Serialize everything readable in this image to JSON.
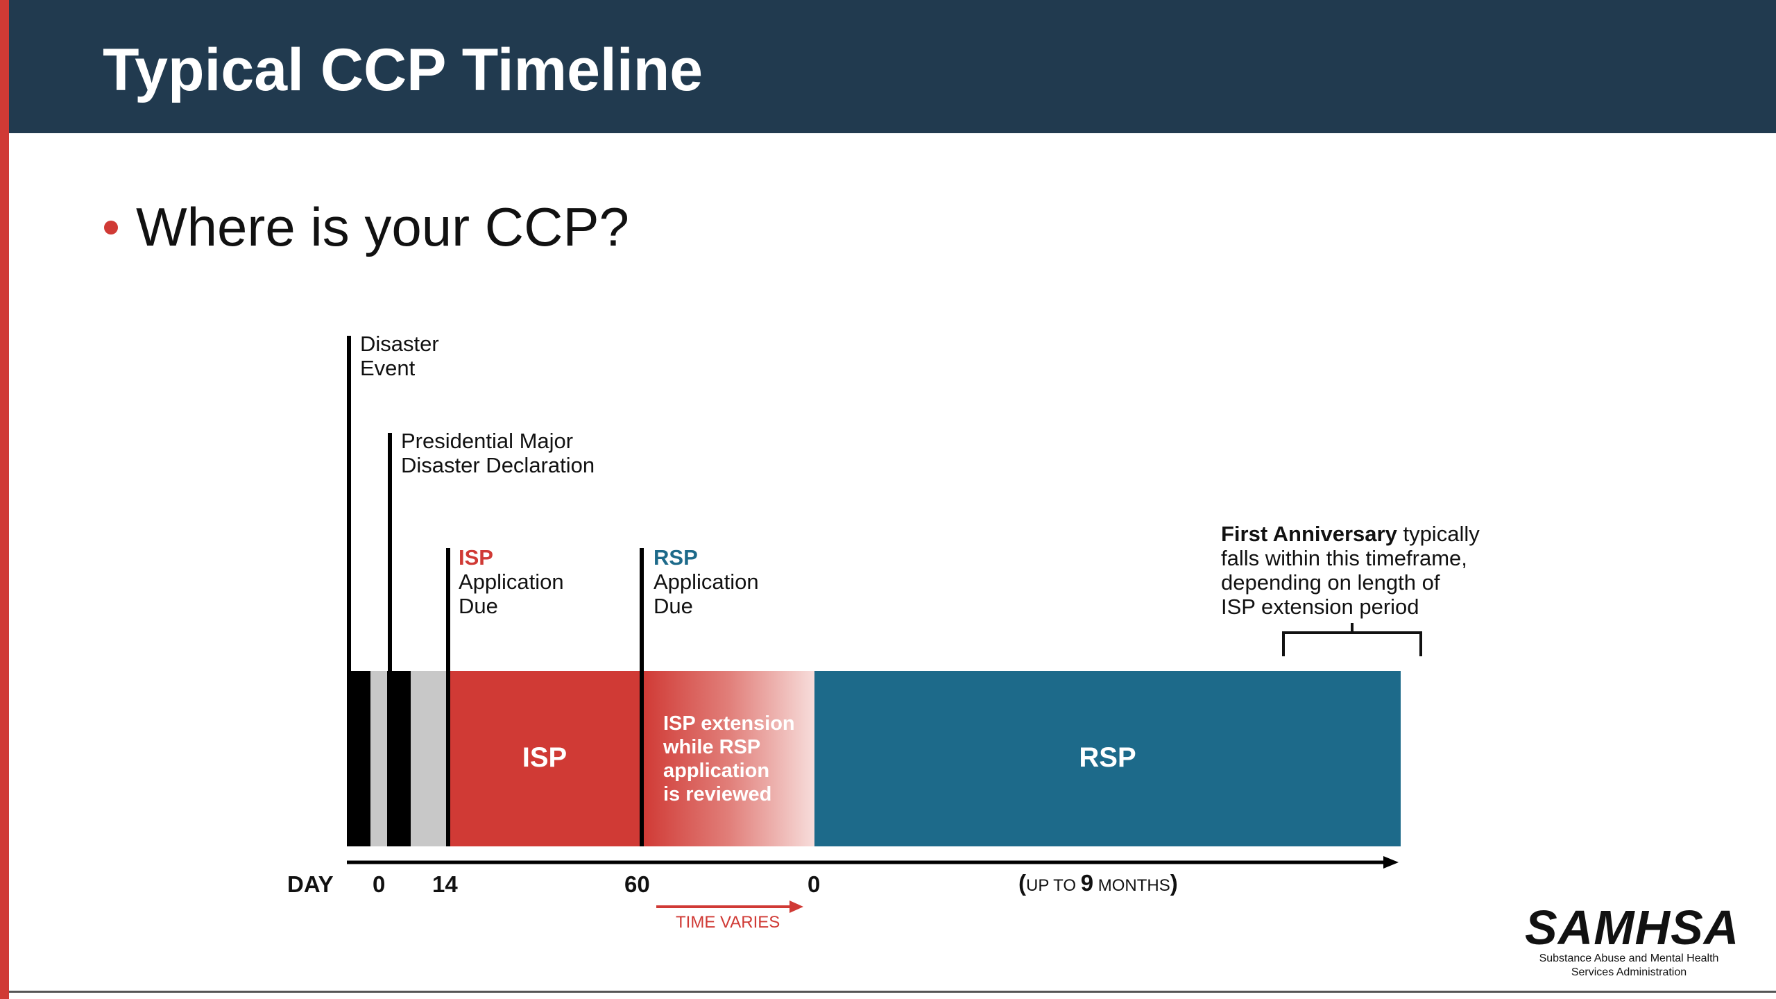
{
  "title": "Typical CCP Timeline",
  "bullet": "Where is your CCP?",
  "markers": {
    "disaster": [
      "Disaster",
      "Event"
    ],
    "declaration": [
      "Presidential Major",
      "Disaster Declaration"
    ],
    "isp_due": {
      "tag": "ISP",
      "lines": [
        "Application",
        "Due"
      ]
    },
    "rsp_due": {
      "tag": "RSP",
      "lines": [
        "Application",
        "Due"
      ]
    }
  },
  "anniversary": {
    "bold": "First Anniversary",
    "rest": " typically",
    "lines": [
      "falls within this timeframe,",
      "depending on length of",
      "ISP extension period"
    ]
  },
  "bars": {
    "isp": "ISP",
    "extension": [
      "ISP extension",
      "while RSP",
      "application",
      "is reviewed"
    ],
    "rsp": "RSP"
  },
  "axis": {
    "day_label": "DAY",
    "ticks": [
      "0",
      "14",
      "60",
      "0"
    ],
    "months": {
      "open": "(",
      "up_to": "UP TO ",
      "num": "9",
      "unit": " MONTHS",
      "close": ")"
    },
    "time_varies": "TIME VARIES"
  },
  "logo": {
    "name": "SAMHSA",
    "sub": [
      "Substance Abuse and Mental Health",
      "Services Administration"
    ]
  },
  "colors": {
    "header": "#213a4f",
    "accent_red": "#d03a35",
    "rsp_teal": "#1d6a8a",
    "gray": "#c8c8c8"
  }
}
